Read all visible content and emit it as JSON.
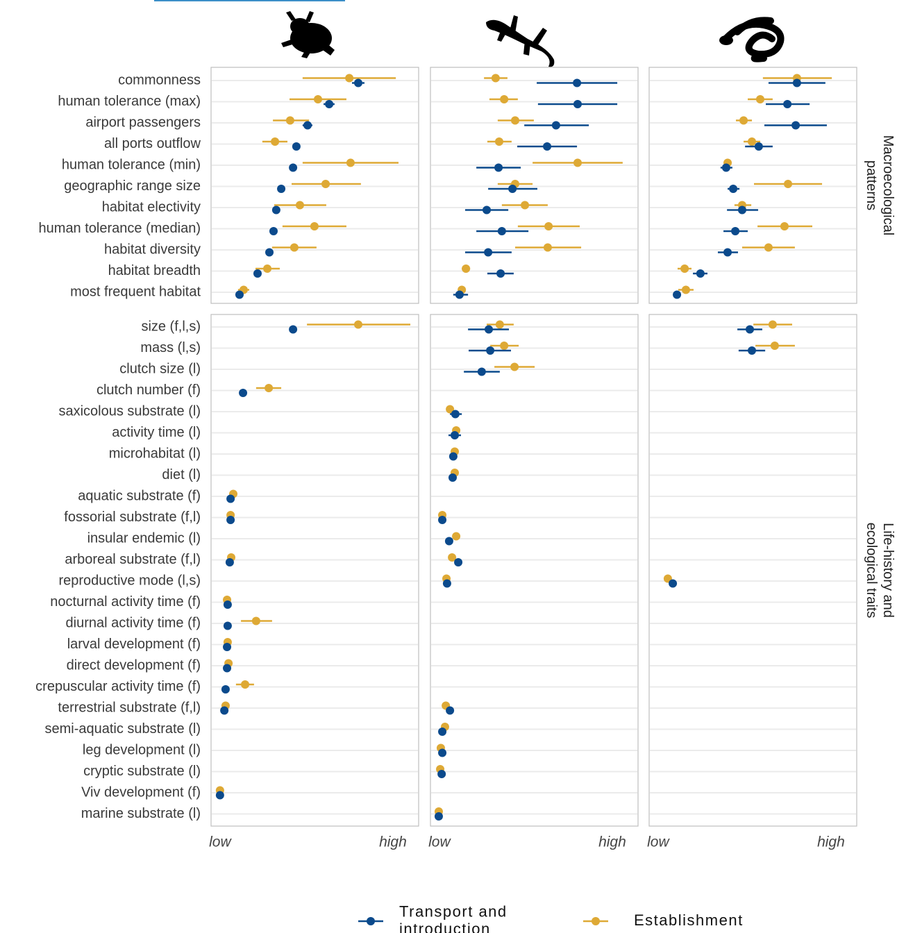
{
  "chart_data": {
    "type": "dot-whisker",
    "xlim": [
      0,
      1
    ],
    "xticks": [
      {
        "value": 0.043,
        "label": "low"
      },
      {
        "value": 0.876,
        "label": "high"
      }
    ],
    "legend_position": "bottom",
    "facets": [
      {
        "label": "Macroecological patterns",
        "categories": [
          "commonness",
          "human tolerance (max)",
          "airport passengers",
          "all ports outflow",
          "human tolerance (min)",
          "geographic range size",
          "habitat electivity",
          "human tolerance (median)",
          "habitat diversity",
          "habitat breadth",
          "most frequent habitat"
        ]
      },
      {
        "label": "Life-history and ecological traits",
        "categories": [
          "size (f,l,s)",
          "mass (l,s)",
          "clutch size (l)",
          "clutch number (f)",
          "saxicolous substrate (l)",
          "activity time (l)",
          "microhabitat (l)",
          "diet (l)",
          "aquatic substrate (f)",
          "fossorial substrate (f,l)",
          "insular endemic (l)",
          "arboreal substrate (f,l)",
          "reproductive mode (l,s)",
          "nocturnal activity time (f)",
          "diurnal activity time (f)",
          "larval development (f)",
          "direct development (f)",
          "crepuscular activity time (f)",
          "terrestrial substrate (f,l)",
          "semi-aquatic substrate (l)",
          "leg development (l)",
          "cryptic substrate (l)",
          "Viv development (f)",
          "marine substrate (l)"
        ]
      }
    ],
    "series": [
      {
        "name": "Transport and introduction",
        "color": "#0b4a8c",
        "values": [
          [
            [
              0.709,
              0.569,
              0.465,
              0.411,
              0.395,
              0.338,
              0.314,
              0.301,
              0.281,
              0.224,
              0.137
            ],
            [
              0.395,
              null,
              null,
              0.154,
              null,
              null,
              null,
              null,
              0.094,
              0.094,
              null,
              0.09,
              null,
              0.08,
              0.08,
              0.077,
              0.077,
              0.07,
              0.064,
              null,
              null,
              null,
              0.043,
              null
            ]
          ],
          [
            [
              0.706,
              0.709,
              0.605,
              0.562,
              0.328,
              0.395,
              0.271,
              0.344,
              0.278,
              0.338,
              0.14
            ],
            [
              0.281,
              0.288,
              0.247,
              null,
              0.12,
              0.117,
              0.11,
              0.107,
              null,
              0.057,
              0.09,
              0.134,
              0.08,
              null,
              null,
              null,
              null,
              null,
              0.094,
              0.057,
              0.057,
              0.054,
              null,
              0.04
            ]
          ],
          [
            [
              0.712,
              0.666,
              0.706,
              0.528,
              0.371,
              0.405,
              0.448,
              0.415,
              0.378,
              0.247,
              0.134
            ],
            [
              0.485,
              0.495,
              null,
              null,
              null,
              null,
              null,
              null,
              null,
              null,
              null,
              null,
              0.114,
              null,
              null,
              null,
              null,
              null,
              null,
              null,
              null,
              null,
              null,
              null
            ]
          ]
        ],
        "lower": [
          [
            [
              0.679,
              0.542,
              0.441,
              null,
              null,
              null,
              null,
              null,
              null,
              null,
              null
            ],
            [
              null,
              null,
              null,
              null,
              null,
              null,
              null,
              null,
              null,
              null,
              null,
              null,
              null,
              null,
              null,
              null,
              null,
              null,
              null,
              null,
              null,
              null,
              null,
              null
            ]
          ],
          [
            [
              0.512,
              0.518,
              0.452,
              0.418,
              0.221,
              0.278,
              0.167,
              0.221,
              0.167,
              0.274,
              0.11
            ],
            [
              0.181,
              0.184,
              0.161,
              null,
              0.094,
              0.087,
              null,
              null,
              null,
              null,
              null,
              null,
              null,
              null,
              null,
              null,
              null,
              null,
              null,
              null,
              null,
              null,
              null,
              null
            ]
          ],
          [
            [
              0.575,
              0.562,
              0.555,
              0.462,
              0.344,
              0.378,
              0.375,
              0.358,
              0.331,
              0.211,
              null
            ],
            [
              0.425,
              0.431,
              null,
              null,
              null,
              null,
              null,
              null,
              null,
              null,
              null,
              null,
              null,
              null,
              null,
              null,
              null,
              null,
              null,
              null,
              null,
              null,
              null,
              null
            ]
          ]
        ],
        "upper": [
          [
            [
              0.739,
              0.595,
              0.488,
              null,
              null,
              null,
              null,
              null,
              null,
              null,
              null
            ],
            [
              null,
              null,
              null,
              null,
              null,
              null,
              null,
              null,
              null,
              null,
              null,
              null,
              null,
              null,
              null,
              null,
              null,
              null,
              null,
              null,
              null,
              null,
              null,
              null
            ]
          ],
          [
            [
              0.9,
              0.9,
              0.763,
              0.706,
              0.435,
              0.515,
              0.375,
              0.472,
              0.391,
              0.401,
              0.181
            ],
            [
              0.378,
              0.388,
              0.334,
              null,
              0.151,
              0.147,
              null,
              null,
              null,
              null,
              null,
              null,
              null,
              null,
              null,
              null,
              null,
              null,
              null,
              null,
              null,
              null,
              null,
              null
            ]
          ],
          [
            [
              0.849,
              0.773,
              0.856,
              0.595,
              0.401,
              0.435,
              0.525,
              0.475,
              0.428,
              0.281,
              null
            ],
            [
              0.545,
              0.559,
              null,
              null,
              null,
              null,
              null,
              null,
              null,
              null,
              null,
              null,
              null,
              null,
              null,
              null,
              null,
              null,
              null,
              null,
              null,
              null,
              null,
              null
            ]
          ]
        ]
      },
      {
        "name": "Establishment",
        "color": "#dea935",
        "values": [
          [
            [
              0.666,
              0.515,
              0.381,
              0.308,
              0.672,
              0.552,
              0.428,
              0.498,
              0.401,
              0.271,
              0.157
            ],
            [
              0.709,
              null,
              null,
              0.278,
              null,
              null,
              null,
              null,
              0.107,
              0.094,
              null,
              0.097,
              null,
              0.077,
              0.217,
              0.08,
              0.084,
              0.164,
              0.07,
              null,
              null,
              null,
              0.043,
              null
            ]
          ],
          [
            [
              0.314,
              0.355,
              0.408,
              0.331,
              0.709,
              0.408,
              0.455,
              0.569,
              0.565,
              0.171,
              0.151
            ],
            [
              0.334,
              0.355,
              0.405,
              null,
              0.094,
              0.124,
              0.117,
              0.117,
              null,
              0.057,
              0.124,
              0.104,
              0.077,
              null,
              null,
              null,
              null,
              null,
              0.074,
              0.07,
              0.05,
              0.047,
              null,
              0.04
            ]
          ],
          [
            [
              0.712,
              0.535,
              0.455,
              0.495,
              0.378,
              0.669,
              0.448,
              0.652,
              0.575,
              0.171,
              0.177
            ],
            [
              0.595,
              0.605,
              null,
              null,
              null,
              null,
              null,
              null,
              null,
              null,
              null,
              null,
              0.09,
              null,
              null,
              null,
              null,
              null,
              null,
              null,
              null,
              null,
              null,
              null
            ]
          ]
        ],
        "lower": [
          [
            [
              0.441,
              0.378,
              0.298,
              0.247,
              0.441,
              0.388,
              0.304,
              0.344,
              0.294,
              0.214,
              0.13
            ],
            [
              0.462,
              null,
              null,
              0.217,
              null,
              null,
              null,
              null,
              null,
              null,
              null,
              null,
              null,
              null,
              0.144,
              null,
              null,
              0.12,
              null,
              null,
              null,
              null,
              null,
              null
            ]
          ],
          [
            [
              0.258,
              0.284,
              0.324,
              0.274,
              0.492,
              0.324,
              0.344,
              0.421,
              0.408,
              0.151,
              null
            ],
            [
              0.271,
              0.288,
              0.308,
              null,
              null,
              null,
              null,
              null,
              null,
              null,
              null,
              null,
              null,
              null,
              null,
              null,
              null,
              null,
              null,
              null,
              null,
              null,
              null,
              null
            ]
          ],
          [
            [
              0.548,
              0.475,
              0.418,
              0.455,
              null,
              0.505,
              0.411,
              0.522,
              0.448,
              0.137,
              0.14
            ],
            [
              0.502,
              0.512,
              null,
              null,
              null,
              null,
              null,
              null,
              null,
              null,
              null,
              null,
              null,
              null,
              null,
              null,
              null,
              null,
              null,
              null,
              null,
              null,
              null,
              null
            ]
          ]
        ],
        "upper": [
          [
            [
              0.89,
              0.652,
              0.472,
              0.368,
              0.903,
              0.722,
              0.555,
              0.652,
              0.508,
              0.331,
              0.184
            ],
            [
              0.96,
              null,
              null,
              0.338,
              null,
              null,
              null,
              null,
              null,
              null,
              null,
              null,
              null,
              null,
              0.294,
              null,
              null,
              0.207,
              null,
              null,
              null,
              null,
              null,
              null
            ]
          ],
          [
            [
              0.371,
              0.421,
              0.498,
              0.391,
              0.926,
              0.492,
              0.565,
              0.719,
              0.726,
              0.191,
              null
            ],
            [
              0.401,
              0.425,
              0.502,
              null,
              null,
              null,
              null,
              null,
              null,
              null,
              null,
              null,
              null,
              null,
              null,
              null,
              null,
              null,
              null,
              null,
              null,
              null,
              null,
              null
            ]
          ],
          [
            [
              0.88,
              0.595,
              0.495,
              0.535,
              null,
              0.833,
              0.492,
              0.786,
              0.702,
              0.204,
              0.214
            ],
            [
              0.689,
              0.702,
              null,
              null,
              null,
              null,
              null,
              null,
              null,
              null,
              null,
              null,
              null,
              null,
              null,
              null,
              null,
              null,
              null,
              null,
              null,
              null,
              null,
              null
            ]
          ]
        ]
      }
    ]
  }
}
